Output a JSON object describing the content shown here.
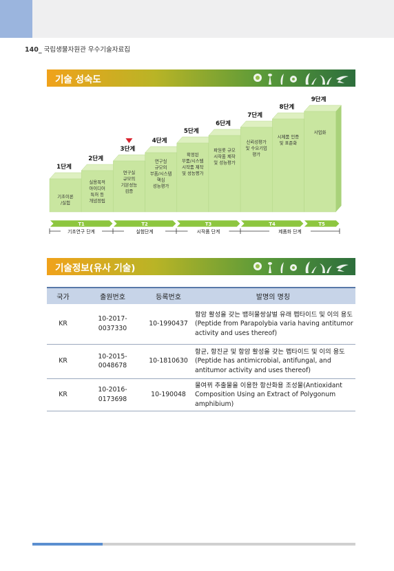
{
  "header": {
    "page_number": "140_",
    "book_title": "국립생물자원관 우수기술자료집"
  },
  "section1": {
    "title": "기술 성숙도"
  },
  "section2": {
    "title": "기술정보(유사 기술)"
  },
  "maturity": {
    "stages": [
      {
        "label": "1단계",
        "desc": [
          "기초이론",
          "/실험"
        ]
      },
      {
        "label": "2단계",
        "desc": [
          "실용목적",
          "아이디어",
          "특허 등",
          "개념정립"
        ]
      },
      {
        "label": "3단계",
        "desc": [
          "연구실",
          "규모의",
          "기본성능",
          "검증"
        ]
      },
      {
        "label": "4단계",
        "desc": [
          "연구실",
          "규모의",
          "부품/시스템",
          "핵심",
          "성능평가"
        ]
      },
      {
        "label": "5단계",
        "desc": [
          "확정된",
          "부품/시스템",
          "시작품 제작",
          "및 성능평가"
        ]
      },
      {
        "label": "6단계",
        "desc": [
          "파일롯 규모",
          "시작품 제작",
          "및 성능평가"
        ]
      },
      {
        "label": "7단계",
        "desc": [
          "신뢰성평가",
          "및 수요기업",
          "평가"
        ]
      },
      {
        "label": "8단계",
        "desc": [
          "시제품 인증",
          "및 표준화"
        ]
      },
      {
        "label": "9단계",
        "desc": [
          "사업화"
        ]
      }
    ],
    "current_stage_index": 2,
    "colors": {
      "box_front": "#c9e6a0",
      "box_top": "#def0c0",
      "box_side": "#a9d27a",
      "arrow": "#8dc63f",
      "marker": "#d9232e"
    },
    "phases": [
      "T1",
      "T2",
      "T3",
      "T4",
      "T5"
    ],
    "phase_groups": [
      "기초연구 단계",
      "실험단계",
      "시작품 단계",
      "제품화 단계"
    ]
  },
  "table": {
    "headers": [
      "국가",
      "출원번호",
      "등록번호",
      "발명의 명칭"
    ],
    "rows": [
      {
        "country": "KR",
        "app_no": [
          "10-2017-",
          "0037330"
        ],
        "reg_no": "10-1990437",
        "title": "항암 활성을 갖는 뱀허물쌍살벌 유래 펩타이드 및 이의 용도(Peptide from Parapolybia varia having antitumor activity and uses thereof)"
      },
      {
        "country": "KR",
        "app_no": [
          "10-2015-",
          "0048678"
        ],
        "reg_no": "10-1810630",
        "title": "항균, 항진균 및 항암 활성을 갖는 펩타이드 및 이의 용도(Peptide has antimicrobial, antifungal, and antitumor activity and uses thereof)"
      },
      {
        "country": "KR",
        "app_no": [
          "10-2016-",
          "0173698"
        ],
        "reg_no": "10-190048",
        "title": "물여뀌 추출물을 이용한 항산화용 조성물(Antioxidant Composition Using an Extract of Polygonum amphibium)"
      }
    ]
  }
}
